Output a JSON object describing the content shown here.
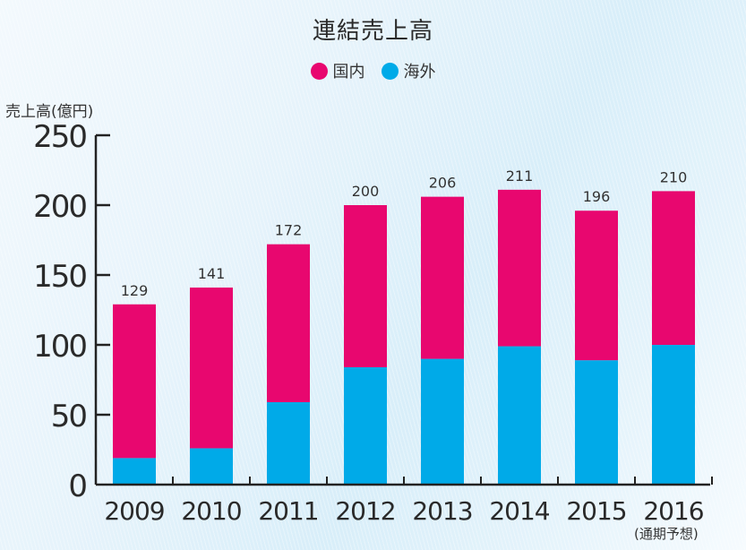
{
  "chart_data": {
    "type": "bar",
    "stacked": true,
    "title": "連結売上高",
    "ylabel": "売上高(億円)",
    "xlabel": "",
    "ylim": [
      0,
      250
    ],
    "yticks": [
      0,
      50,
      100,
      150,
      200,
      250
    ],
    "categories": [
      "2009",
      "2010",
      "2011",
      "2012",
      "2013",
      "2014",
      "2015",
      "2016"
    ],
    "category_note": {
      "2016": "(通期予想)"
    },
    "series": [
      {
        "name": "海外",
        "color": "#00AAE8",
        "values": [
          19,
          26,
          59,
          84,
          90,
          99,
          89,
          100
        ]
      },
      {
        "name": "国内",
        "color": "#E8076F",
        "values": [
          110,
          115,
          113,
          116,
          116,
          112,
          107,
          110
        ]
      }
    ],
    "totals": [
      129,
      141,
      172,
      200,
      206,
      211,
      196,
      210
    ],
    "legend": [
      {
        "label": "国内",
        "color": "#E8076F"
      },
      {
        "label": "海外",
        "color": "#00AAE8"
      }
    ],
    "legend_position": "top-center",
    "grid": false
  }
}
